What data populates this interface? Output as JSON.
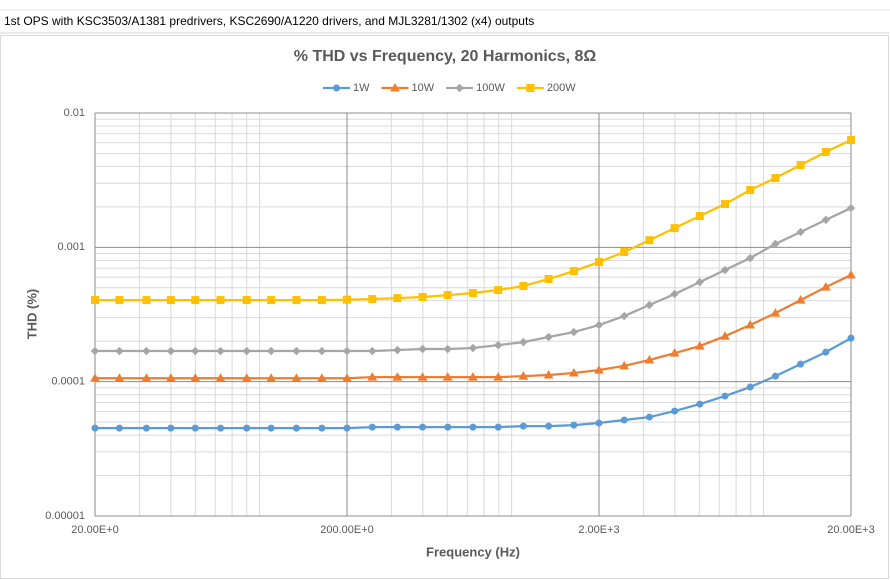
{
  "header": {
    "text": "1st OPS with KSC3503/A1381 predrivers, KSC2690/A1220 drivers, and MJL3281/1302  (x4) outputs"
  },
  "chart_data": {
    "type": "line",
    "title": "% THD vs Frequency, 20 Harmonics, 8Ω",
    "x_label": "Frequency (Hz)",
    "y_label": "THD (%)",
    "x_log": true,
    "y_log": true,
    "grid": true,
    "minor_grid": true,
    "legend": "top",
    "x": [
      20,
      25,
      32,
      40,
      50,
      63,
      80,
      100,
      126,
      159,
      200,
      252,
      317,
      399,
      502,
      632,
      796,
      1002,
      1262,
      1589,
      2000,
      2518,
      3170,
      3991,
      5024,
      6325,
      7962,
      10024,
      12619,
      15887,
      20000
    ],
    "xlim": [
      20,
      20000
    ],
    "xticks": [
      {
        "value": 20,
        "label": "20.00E+0"
      },
      {
        "value": 200,
        "label": "200.00E+0"
      },
      {
        "value": 2000,
        "label": "2.00E+3"
      },
      {
        "value": 20000,
        "label": "20.00E+3"
      }
    ],
    "ylim": [
      1e-05,
      0.01
    ],
    "yticks": [
      1e-05,
      0.0001,
      0.001,
      0.01
    ],
    "series": [
      {
        "name": "1W",
        "color": "#5b9bd5",
        "marker": "circle",
        "values": [
          4.51e-05,
          4.51e-05,
          4.51e-05,
          4.51e-05,
          4.51e-05,
          4.51e-05,
          4.51e-05,
          4.51e-05,
          4.51e-05,
          4.51e-05,
          4.51e-05,
          4.59e-05,
          4.59e-05,
          4.59e-05,
          4.59e-05,
          4.59e-05,
          4.59e-05,
          4.67e-05,
          4.67e-05,
          4.75e-05,
          4.92e-05,
          5.18e-05,
          5.45e-05,
          6.04e-05,
          6.81e-05,
          7.81e-05,
          9.12e-05,
          0.00011,
          0.000135,
          0.000166,
          0.000211
        ]
      },
      {
        "name": "10W",
        "color": "#ed7d31",
        "marker": "triangle",
        "values": [
          0.000106,
          0.000106,
          0.000106,
          0.000106,
          0.000106,
          0.000106,
          0.000106,
          0.000106,
          0.000106,
          0.000106,
          0.000106,
          0.000108,
          0.000108,
          0.000108,
          0.000108,
          0.000108,
          0.000108,
          0.00011,
          0.000112,
          0.000116,
          0.000122,
          0.000131,
          0.000145,
          0.000163,
          0.000184,
          0.000218,
          0.000264,
          0.000324,
          0.000405,
          0.000506,
          0.000622
        ]
      },
      {
        "name": "100W",
        "color": "#a5a5a5",
        "marker": "diamond",
        "values": [
          0.000169,
          0.000169,
          0.000169,
          0.000169,
          0.000169,
          0.000169,
          0.000169,
          0.000169,
          0.000169,
          0.000169,
          0.000169,
          0.000169,
          0.000172,
          0.000175,
          0.000175,
          0.000178,
          0.000187,
          0.000197,
          0.000215,
          0.000234,
          0.000264,
          0.000308,
          0.000372,
          0.000449,
          0.000551,
          0.000678,
          0.000832,
          0.00106,
          0.0013,
          0.0016,
          0.00196
        ]
      },
      {
        "name": "200W",
        "color": "#ffc000",
        "marker": "square",
        "values": [
          0.000405,
          0.000405,
          0.000405,
          0.000405,
          0.000405,
          0.000405,
          0.000405,
          0.000405,
          0.000405,
          0.000405,
          0.000408,
          0.000412,
          0.000419,
          0.000427,
          0.000441,
          0.000457,
          0.000481,
          0.000515,
          0.000581,
          0.000666,
          0.000777,
          0.000923,
          0.00113,
          0.00139,
          0.00171,
          0.0021,
          0.00267,
          0.00328,
          0.0041,
          0.00513,
          0.00629
        ]
      }
    ]
  }
}
